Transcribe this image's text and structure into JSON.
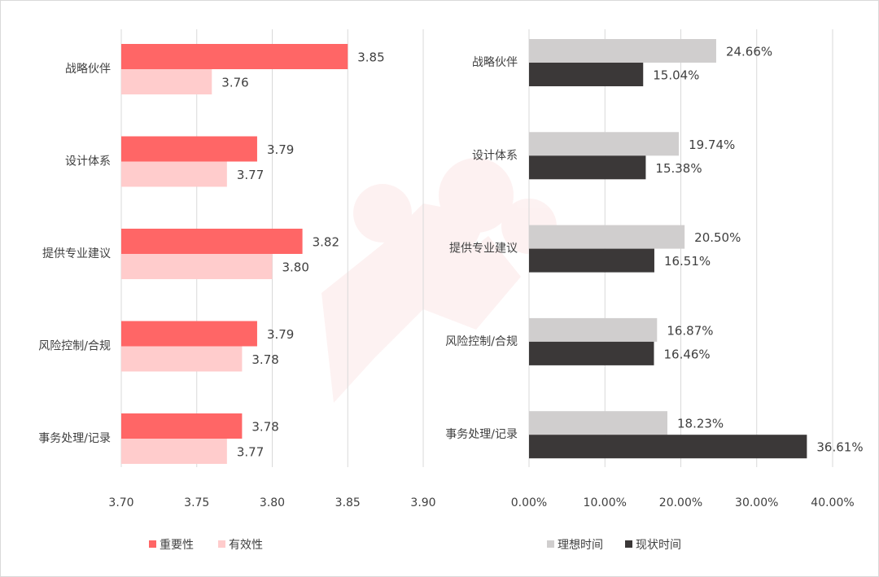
{
  "chart_data": [
    {
      "type": "bar",
      "orientation": "horizontal",
      "categories": [
        "战略伙伴",
        "设计体系",
        "提供专业建议",
        "风险控制/合规",
        "事务处理/记录"
      ],
      "series": [
        {
          "name": "重要性",
          "color": "#ff6666",
          "values": [
            3.85,
            3.79,
            3.82,
            3.79,
            3.78
          ],
          "labels": [
            "3.85",
            "3.79",
            "3.82",
            "3.79",
            "3.78"
          ]
        },
        {
          "name": "有效性",
          "color": "#ffcccc",
          "values": [
            3.76,
            3.77,
            3.8,
            3.78,
            3.77
          ],
          "labels": [
            "3.76",
            "3.77",
            "3.80",
            "3.78",
            "3.77"
          ]
        }
      ],
      "xlim": [
        3.7,
        3.9
      ],
      "xticks": [
        "3.70",
        "3.75",
        "3.80",
        "3.85",
        "3.90"
      ],
      "grid": "vertical",
      "legend_position": "bottom"
    },
    {
      "type": "bar",
      "orientation": "horizontal",
      "categories": [
        "战略伙伴",
        "设计体系",
        "提供专业建议",
        "风险控制/合规",
        "事务处理/记录"
      ],
      "series": [
        {
          "name": "理想时间",
          "color": "#d0cece",
          "values": [
            24.66,
            19.74,
            20.5,
            16.87,
            18.23
          ],
          "labels": [
            "24.66%",
            "19.74%",
            "20.50%",
            "16.87%",
            "18.23%"
          ]
        },
        {
          "name": "现状时间",
          "color": "#3b3838",
          "values": [
            15.04,
            15.38,
            16.51,
            16.46,
            36.61
          ],
          "labels": [
            "15.04%",
            "15.38%",
            "16.51%",
            "16.46%",
            "36.61%"
          ]
        }
      ],
      "xlim": [
        0,
        40
      ],
      "xticks": [
        "0.00%",
        "10.00%",
        "20.00%",
        "30.00%",
        "40.00%"
      ],
      "grid": "vertical",
      "legend_position": "bottom"
    }
  ]
}
